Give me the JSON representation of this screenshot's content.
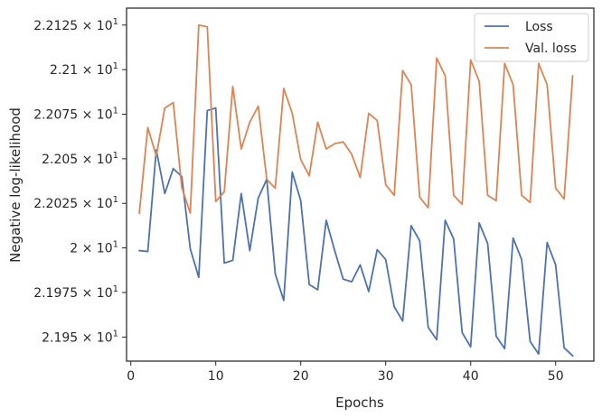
{
  "chart_data": {
    "type": "line",
    "xlabel": "Epochs",
    "ylabel": "Negative log-likelihood",
    "xlim": [
      -0.5,
      54.5
    ],
    "ylim": [
      21.9365,
      22.1345
    ],
    "xticks": [
      0,
      10,
      20,
      30,
      40,
      50
    ],
    "xtick_labels": [
      "0",
      "10",
      "20",
      "30",
      "40",
      "50"
    ],
    "yticks": [
      21.95,
      21.975,
      22.0,
      22.025,
      22.05,
      22.075,
      22.1,
      22.125
    ],
    "ytick_labels": [
      {
        "mant": "2.195",
        "exp": "1"
      },
      {
        "mant": "2.1975",
        "exp": "1"
      },
      {
        "mant": "2",
        "exp": "1"
      },
      {
        "mant": "2.2025",
        "exp": "1"
      },
      {
        "mant": "2.205",
        "exp": "1"
      },
      {
        "mant": "2.2075",
        "exp": "1"
      },
      {
        "mant": "2.21",
        "exp": "1"
      },
      {
        "mant": "2.2125",
        "exp": "1"
      }
    ],
    "grid": false,
    "legend_position": "top-right",
    "x": [
      1,
      2,
      3,
      4,
      5,
      6,
      7,
      8,
      9,
      10,
      11,
      12,
      13,
      14,
      15,
      16,
      17,
      18,
      19,
      20,
      21,
      22,
      23,
      24,
      25,
      26,
      27,
      28,
      29,
      30,
      31,
      32,
      33,
      34,
      35,
      36,
      37,
      38,
      39,
      40,
      41,
      42,
      43,
      44,
      45,
      46,
      47,
      48,
      49,
      50,
      51,
      52
    ],
    "series": [
      {
        "name": "Loss",
        "color": "#4c72b0",
        "values": [
          21.9985,
          21.998,
          22.055,
          22.0305,
          22.0445,
          22.04,
          21.9995,
          21.9835,
          22.077,
          22.0785,
          21.9915,
          21.993,
          22.0305,
          21.9985,
          22.028,
          22.0385,
          21.9855,
          21.9705,
          22.0425,
          22.0265,
          21.9795,
          21.9765,
          22.0155,
          21.9985,
          21.9825,
          21.981,
          21.9905,
          21.9755,
          21.999,
          21.9935,
          21.967,
          21.959,
          22.0125,
          22.004,
          21.9555,
          21.9485,
          22.0155,
          22.005,
          21.9525,
          21.9445,
          22.014,
          22.0025,
          21.9505,
          21.9435,
          22.0055,
          21.9935,
          21.9475,
          21.9405,
          22.003,
          21.9905,
          21.944,
          21.9395
        ]
      },
      {
        "name": "Val. loss",
        "color": "#dd8452",
        "values": [
          22.0195,
          22.0675,
          22.0515,
          22.0785,
          22.0815,
          22.034,
          22.0195,
          22.125,
          22.124,
          22.026,
          22.0315,
          22.0905,
          22.0555,
          22.0705,
          22.0795,
          22.0385,
          22.0335,
          22.0895,
          22.0755,
          22.0495,
          22.0405,
          22.0705,
          22.0555,
          22.0585,
          22.0595,
          22.0525,
          22.0395,
          22.0755,
          22.0715,
          22.0355,
          22.0295,
          22.0995,
          22.0915,
          22.0285,
          22.0225,
          22.1065,
          22.0965,
          22.0295,
          22.0245,
          22.1055,
          22.0935,
          22.0295,
          22.0265,
          22.1035,
          22.0915,
          22.0295,
          22.0255,
          22.1035,
          22.0915,
          22.0335,
          22.0275,
          22.0965
        ]
      }
    ]
  }
}
